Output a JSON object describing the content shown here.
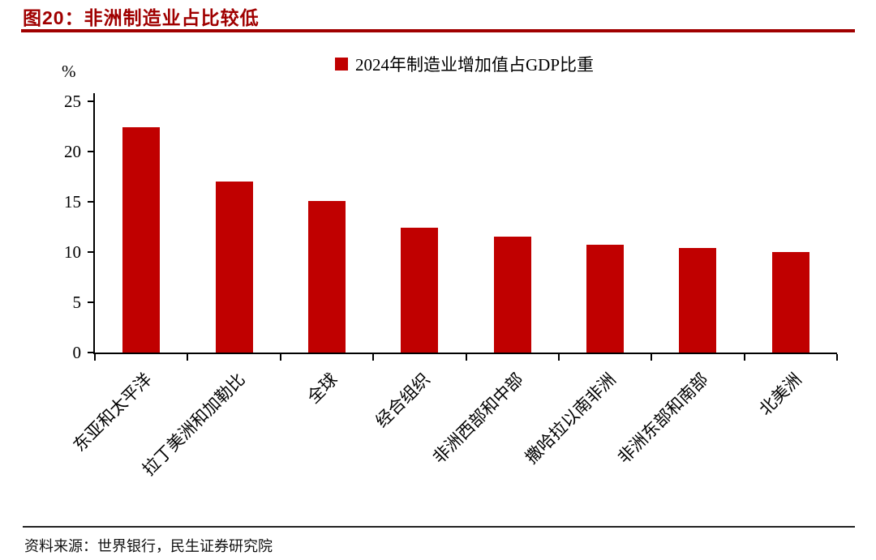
{
  "title": "图20：非洲制造业占比较低",
  "source": "资料来源：世界银行，民生证券研究院",
  "colors": {
    "bar": "#C00000",
    "title": "#A00000",
    "axis": "#000000"
  },
  "chart_data": {
    "type": "bar",
    "legend": "2024年制造业增加值占GDP比重",
    "legend_position": "top",
    "ylabel": "%",
    "ylim": [
      0,
      25
    ],
    "yticks": [
      0,
      5,
      10,
      15,
      20,
      25
    ],
    "grid": false,
    "categories": [
      "东亚和太平洋",
      "拉丁美洲和加勒比",
      "全球",
      "经合组织",
      "非洲西部和中部",
      "撒哈拉以南非洲",
      "非洲东部和南部",
      "北美洲"
    ],
    "values": [
      22.4,
      17.0,
      15.1,
      12.4,
      11.5,
      10.7,
      10.4,
      10.0
    ]
  }
}
